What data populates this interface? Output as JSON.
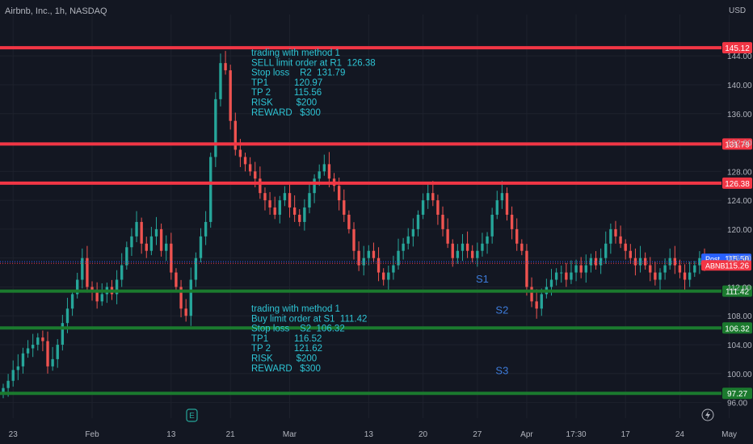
{
  "header": {
    "symbol": "Airbnb, Inc., 1h, NASDAQ",
    "currency": "USD"
  },
  "colors": {
    "background": "#131722",
    "grid": "#1e222d",
    "up": "#26a69a",
    "down": "#ef5350",
    "resistance": "#f23645",
    "support": "#1b7a2e",
    "note_text": "#2ec4d4",
    "axis_text": "#b2b5be",
    "support_label_text": "#3d7bd9",
    "post_tag": "#2962ff",
    "symbol_tag": "#f23645"
  },
  "chart_data": {
    "type": "candlestick",
    "title": "Airbnb, Inc., 1h, NASDAQ",
    "ylim": [
      94.5,
      149.5
    ],
    "y_ticks": [
      96,
      100,
      104,
      108,
      112,
      116,
      120,
      124,
      128,
      132,
      136,
      140,
      144
    ],
    "y_tick_labels": [
      "96.00",
      "100.00",
      "104.00",
      "108.00",
      "112.00",
      "116.00",
      "120.00",
      "124.00",
      "128.00",
      "132.00",
      "136.00",
      "140.00",
      "144.00"
    ],
    "x_ticks": [
      {
        "label": "23",
        "idx": 2
      },
      {
        "label": "Feb",
        "idx": 18
      },
      {
        "label": "13",
        "idx": 34
      },
      {
        "label": "21",
        "idx": 46
      },
      {
        "label": "Mar",
        "idx": 58
      },
      {
        "label": "13",
        "idx": 74
      },
      {
        "label": "20",
        "idx": 85
      },
      {
        "label": "27",
        "idx": 96
      },
      {
        "label": "Apr",
        "idx": 106
      },
      {
        "label": "17:30",
        "idx": 116
      },
      {
        "label": "17",
        "idx": 126
      },
      {
        "label": "24",
        "idx": 137
      },
      {
        "label": "May",
        "idx": 147
      }
    ],
    "levels": [
      {
        "value": 145.12,
        "label": "145.12",
        "kind": "resistance"
      },
      {
        "value": 131.79,
        "label": "131.79",
        "kind": "resistance"
      },
      {
        "value": 126.38,
        "label": "126.38",
        "kind": "resistance"
      },
      {
        "value": 111.42,
        "label": "111.42",
        "kind": "support"
      },
      {
        "value": 106.32,
        "label": "106.32",
        "kind": "support"
      },
      {
        "value": 97.27,
        "label": "97.27",
        "kind": "support"
      }
    ],
    "price_tags": [
      {
        "name": "Post",
        "value": 115.5,
        "label": "115.50"
      },
      {
        "name": "ABNB",
        "value": 115.26,
        "label": "115.26"
      }
    ],
    "support_labels": [
      {
        "text": "S1",
        "idx": 97,
        "y": 112.6
      },
      {
        "text": "S2",
        "idx": 101,
        "y": 108.3
      },
      {
        "text": "S3",
        "idx": 101,
        "y": 99.9
      }
    ],
    "closes": [
      98,
      99,
      100.5,
      101,
      102.8,
      103.5,
      104,
      105,
      104.5,
      101,
      102,
      104,
      107,
      109,
      111,
      113,
      116,
      112,
      111.5,
      110,
      111,
      112,
      111,
      113,
      115,
      117.5,
      119,
      121,
      118,
      117,
      119,
      120,
      117,
      118,
      114,
      112,
      109,
      108,
      113,
      116,
      119,
      121,
      130,
      138,
      143,
      142,
      135,
      131,
      130,
      129,
      128,
      127,
      125,
      124,
      123,
      122,
      124,
      125,
      123,
      122,
      121,
      123,
      125,
      127,
      128,
      129,
      127,
      126,
      124,
      122,
      120,
      117,
      115,
      116,
      117,
      116,
      114,
      113,
      114,
      115,
      117,
      118,
      119,
      120,
      122,
      124,
      125,
      124,
      122,
      120,
      118,
      116,
      117,
      118,
      117,
      116,
      117,
      118,
      119,
      122,
      124,
      125,
      122,
      120,
      118,
      117,
      112,
      110,
      109,
      111,
      112,
      113,
      114,
      114,
      113,
      114,
      115,
      114,
      115,
      116,
      115,
      116,
      118,
      120,
      119,
      118,
      117,
      116,
      115,
      116,
      115,
      114,
      113,
      114,
      115,
      116,
      115,
      114,
      113,
      114,
      115,
      116,
      115
    ]
  },
  "notes": [
    {
      "lines": [
        "trading with method 1",
        "SELL limit order at R1  126.38",
        "Stop loss    R2  131.79",
        "TP1          120.97",
        "TP 2         115.56",
        "RISK         $200",
        "REWARD   $300"
      ]
    },
    {
      "lines": [
        "trading with method 1",
        "Buy limit order at S1  111.42",
        "Stop loss    S2  106.32",
        "TP1          116.52",
        "TP 2         121.62",
        "RISK         $200",
        "REWARD   $300"
      ]
    }
  ],
  "earnings_marker": "E",
  "flash_icon": "flash-icon"
}
